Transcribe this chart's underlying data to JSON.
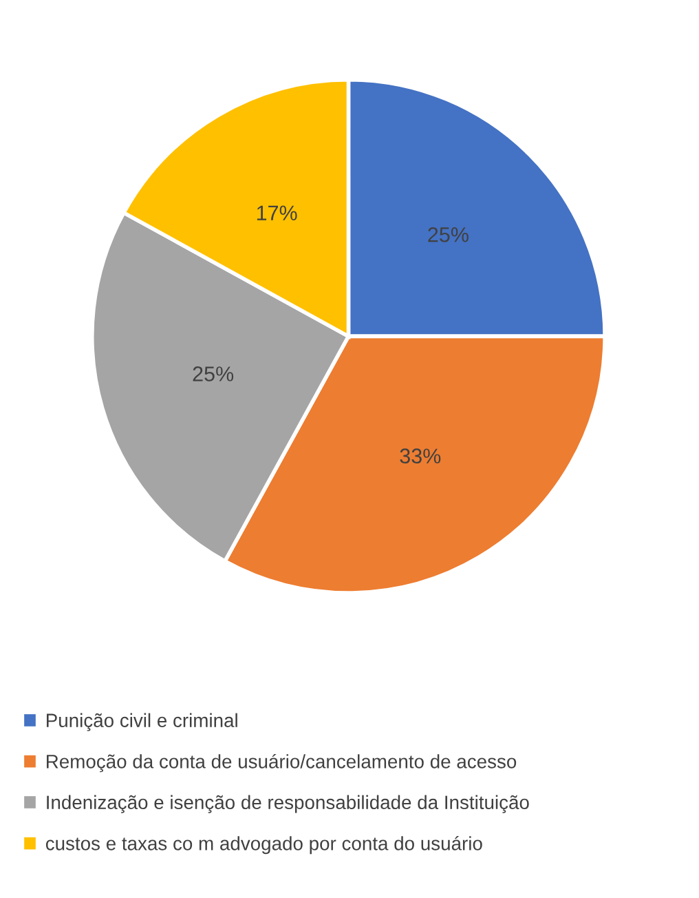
{
  "chart_data": {
    "type": "pie",
    "categories": [
      "Punição civil e criminal",
      "Remoção da conta de usuário/cancelamento de acesso",
      "Indenização e isenção de responsabilidade da Instituição",
      "custos e taxas co m advogado por conta do usuário"
    ],
    "values": [
      25,
      33,
      25,
      17
    ],
    "value_labels": [
      "25%",
      "33%",
      "25%",
      "17%"
    ],
    "colors": [
      "#4472c4",
      "#ed7d31",
      "#a5a5a5",
      "#ffc000"
    ],
    "legend": "bottom"
  }
}
